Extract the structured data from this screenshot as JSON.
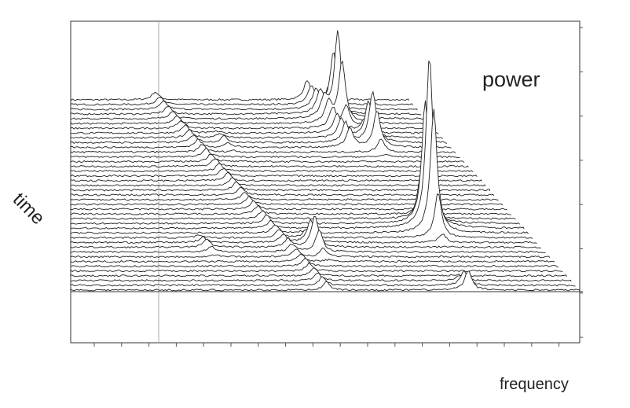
{
  "chart_data": {
    "type": "line",
    "subtype": "waterfall",
    "title": "",
    "xlabel": "frequency",
    "ylabel": "time",
    "zlabel": "power",
    "grid": false,
    "traces": 41,
    "peaks": [
      {
        "frequency": 25,
        "time_range": [
          0,
          40
        ],
        "power": 10
      },
      {
        "frequency": 70,
        "time_range": [
          0,
          10
        ],
        "power": 25
      },
      {
        "frequency": 74,
        "time": 4,
        "power": 110
      },
      {
        "frequency": 78,
        "time": 9,
        "power": 65
      },
      {
        "frequency": 72,
        "time": 27,
        "power": 220
      },
      {
        "frequency": 34,
        "time": 9,
        "power": 8
      },
      {
        "frequency": 33,
        "time": 31,
        "power": 40
      },
      {
        "frequency": 1,
        "time": 31,
        "power": 10
      },
      {
        "frequency": 67,
        "time": 40,
        "power": 25
      }
    ]
  },
  "labels": {
    "power": "power",
    "time": "time",
    "frequency": "frequency"
  }
}
